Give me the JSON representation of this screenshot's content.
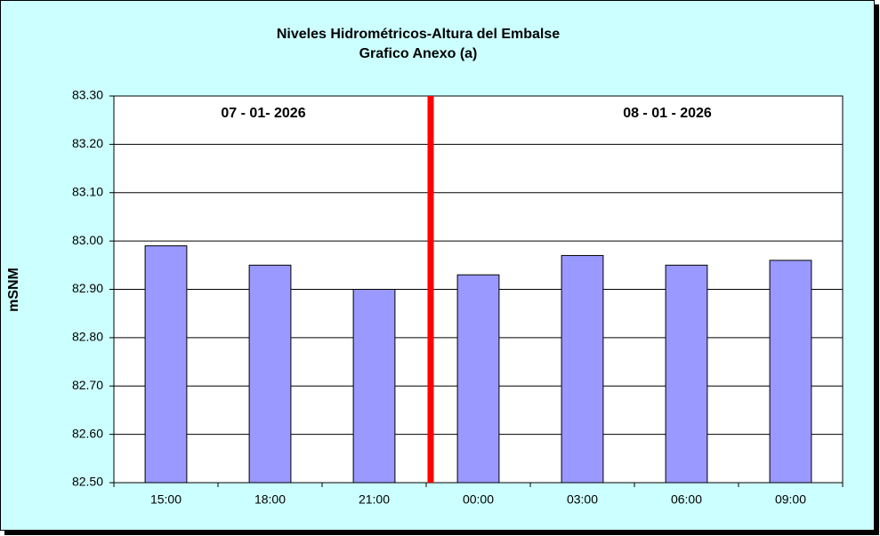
{
  "chart_data": {
    "type": "bar",
    "title": "Niveles Hidrométricos-Altura del Embalse",
    "subtitle": "Grafico Anexo (a)",
    "y_label": "mSNM",
    "annotations": [
      "07 - 01- 2026",
      "08 - 01 - 2026"
    ],
    "categories": [
      "15:00",
      "18:00",
      "21:00",
      "00:00",
      "03:00",
      "06:00",
      "09:00"
    ],
    "values": [
      82.99,
      82.95,
      82.9,
      82.93,
      82.97,
      82.95,
      82.96
    ],
    "color": "#9999ff",
    "ylim": [
      82.5,
      83.3
    ],
    "yticks": [
      {
        "value": 82.5,
        "label": "82.50"
      },
      {
        "value": 82.6,
        "label": "82.60"
      },
      {
        "value": 82.7,
        "label": "82.70"
      },
      {
        "value": 82.8,
        "label": "82.80"
      },
      {
        "value": 82.9,
        "label": "82.90"
      },
      {
        "value": 83.0,
        "label": "83.00"
      },
      {
        "value": 83.1,
        "label": "83.10"
      },
      {
        "value": 83.2,
        "label": "83.20"
      },
      {
        "value": 83.3,
        "label": "83.30"
      }
    ],
    "grid": true
  }
}
